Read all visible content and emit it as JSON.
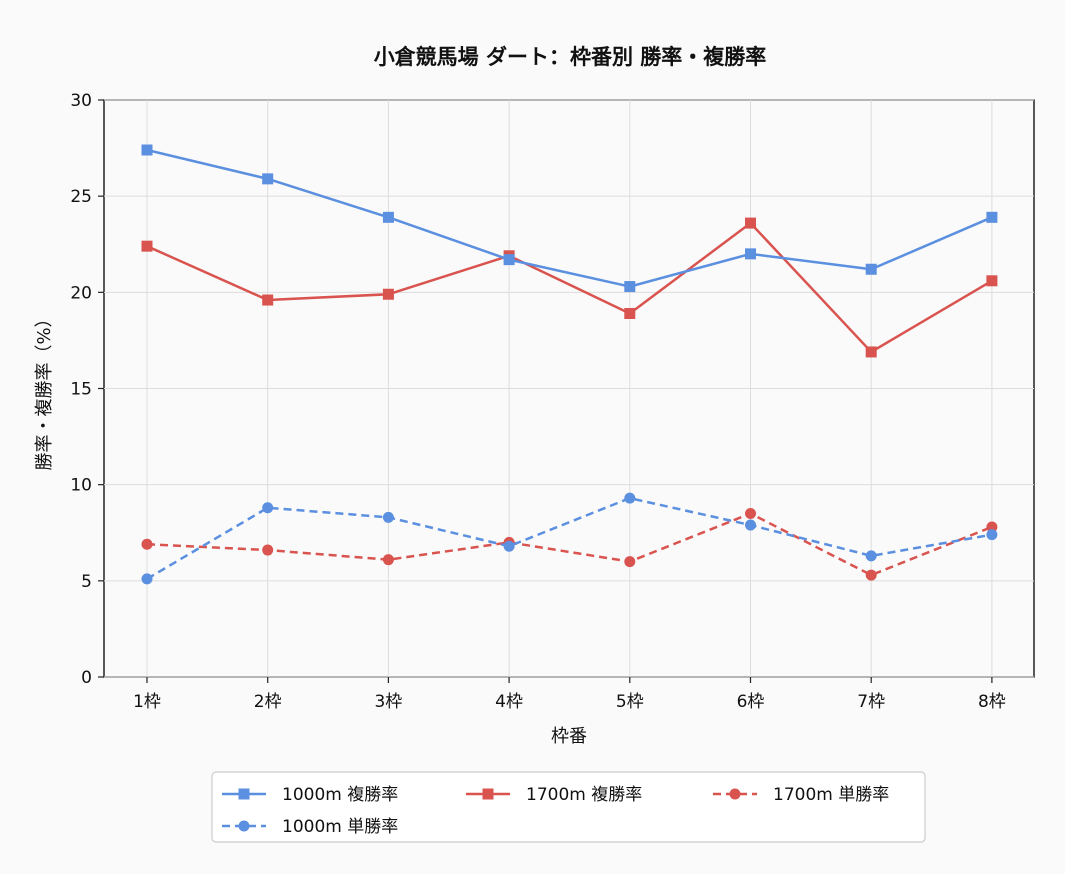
{
  "chart_data": {
    "type": "line",
    "title": "小倉競馬場 ダート：枠番別 勝率・複勝率",
    "xlabel": "枠番",
    "ylabel": "勝率・複勝率（%）",
    "categories": [
      "1枠",
      "2枠",
      "3枠",
      "4枠",
      "5枠",
      "6枠",
      "7枠",
      "8枠"
    ],
    "ylim": [
      0,
      30
    ],
    "yticks": [
      0,
      5,
      10,
      15,
      20,
      25,
      30
    ],
    "grid": true,
    "legend_position": "bottom-center",
    "series": [
      {
        "name": "1000m 複勝率",
        "values": [
          27.4,
          25.9,
          23.9,
          21.7,
          20.3,
          22.0,
          21.2,
          23.9
        ],
        "color": "#5b8fe0",
        "marker": "square",
        "dash": "solid"
      },
      {
        "name": "1000m 単勝率",
        "values": [
          5.1,
          8.8,
          8.3,
          6.8,
          9.3,
          7.9,
          6.3,
          7.4
        ],
        "color": "#5b8fe0",
        "marker": "circle",
        "dash": "dashed"
      },
      {
        "name": "1700m 複勝率",
        "values": [
          22.4,
          19.6,
          19.9,
          21.9,
          18.9,
          23.6,
          16.9,
          20.6
        ],
        "color": "#d9534f",
        "marker": "square",
        "dash": "solid"
      },
      {
        "name": "1700m 単勝率",
        "values": [
          6.9,
          6.6,
          6.1,
          7.0,
          6.0,
          8.5,
          5.3,
          7.8
        ],
        "color": "#d9534f",
        "marker": "circle",
        "dash": "dashed"
      }
    ]
  }
}
